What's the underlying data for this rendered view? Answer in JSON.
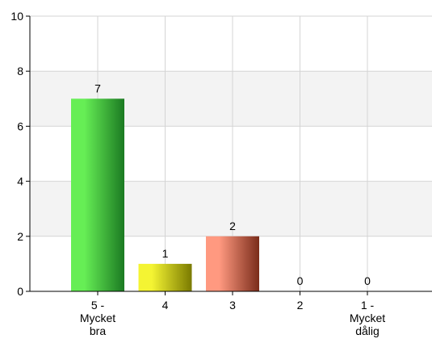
{
  "chart_data": {
    "type": "bar",
    "categories": [
      [
        "5 -",
        "Mycket",
        "bra"
      ],
      [
        "4"
      ],
      [
        "3"
      ],
      [
        "2"
      ],
      [
        "1 -",
        "Mycket",
        "dålig"
      ]
    ],
    "values": [
      7,
      1,
      2,
      0,
      0
    ],
    "data_labels": [
      "7",
      "1",
      "2",
      "0",
      "0"
    ],
    "ylim": [
      0,
      10
    ],
    "yticks": [
      0,
      2,
      4,
      6,
      8,
      10
    ],
    "ytick_labels": [
      "0",
      "2",
      "4",
      "6",
      "8",
      "10"
    ],
    "grid": true,
    "alternating_bands": true,
    "title": "",
    "xlabel": "",
    "ylabel": "",
    "colors": {
      "band": "#f3f3f3",
      "grid": "#d4d4d4",
      "axis": "#000000",
      "bars": [
        {
          "light": "#66ee55",
          "dark": "#1b7a22"
        },
        {
          "light": "#f4f433",
          "dark": "#7a7a00"
        },
        {
          "light": "#ff9980",
          "dark": "#7a2c1a"
        },
        {
          "light": "#cccccc",
          "dark": "#666666"
        },
        {
          "light": "#cccccc",
          "dark": "#666666"
        }
      ]
    }
  }
}
